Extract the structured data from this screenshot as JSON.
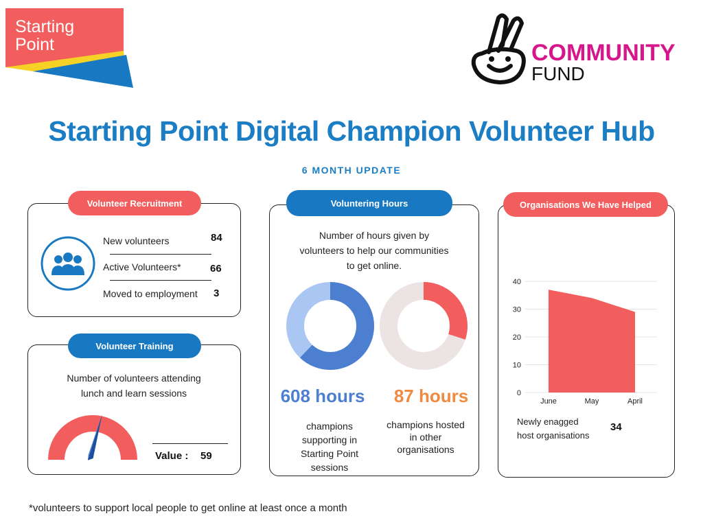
{
  "logos": {
    "starting_point": "Starting Point",
    "community": "COMMUNITY",
    "fund": "FUND"
  },
  "title": "Starting Point Digital Champion Volunteer Hub",
  "subtitle": "6 MONTH UPDATE",
  "recruitment": {
    "heading": "Volunteer Recruitment",
    "icon": "people-group-icon",
    "rows": [
      {
        "label": "New volunteers",
        "value": "84"
      },
      {
        "label": "Active Volunteers*",
        "value": "66"
      },
      {
        "label": "Moved to employment",
        "value": "3"
      }
    ]
  },
  "training": {
    "heading": "Volunteer Training",
    "desc_line1": "Number of volunteers attending",
    "desc_line2": "lunch and learn sessions",
    "value_label": "Value :",
    "value": "59",
    "gauge_fraction": 0.6
  },
  "hours": {
    "heading": "Voluntering Hours",
    "desc_line1": "Number of hours given by",
    "desc_line2": "volunteers to help our communities",
    "desc_line3": "to get online.",
    "donut1": {
      "value_text": "608 hours",
      "fraction": 0.62,
      "line1": "champions",
      "line2": "supporting in",
      "line3": "Starting Point",
      "line4": "sessions",
      "color": "#4c7fd0",
      "track": "#a9c7f2"
    },
    "donut2": {
      "value_text": "87 hours",
      "fraction": 0.3,
      "line1": "champions hosted",
      "line2": "in other",
      "line3": "organisations",
      "color": "#f25e5e",
      "track": "#ece3e3"
    }
  },
  "organisations": {
    "heading": "Organisations We Have Helped",
    "caption_line1": "Newly enagged",
    "caption_line2": "host organisations",
    "caption_value": "34"
  },
  "chart_data": {
    "type": "area",
    "categories": [
      "June",
      "May",
      "April"
    ],
    "values": [
      37,
      34,
      29
    ],
    "ylim": [
      0,
      40
    ],
    "yticks": [
      "0",
      "10",
      "20",
      "30",
      "40"
    ],
    "color": "#f25e5e",
    "grid": true
  },
  "footnote": "*volunteers to support local people to get online at least once a month"
}
